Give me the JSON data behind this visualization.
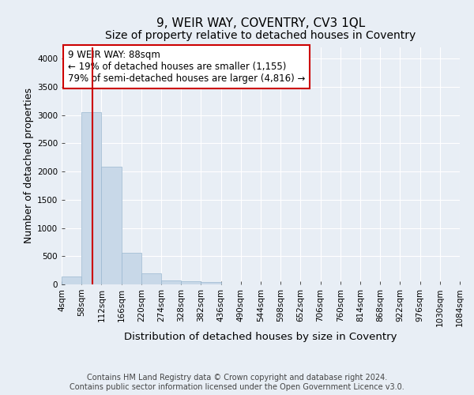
{
  "title": "9, WEIR WAY, COVENTRY, CV3 1QL",
  "subtitle": "Size of property relative to detached houses in Coventry",
  "xlabel": "Distribution of detached houses by size in Coventry",
  "ylabel": "Number of detached properties",
  "bar_color": "#c8d8e8",
  "bar_edge_color": "#9ab8d0",
  "bar_values": [
    140,
    3050,
    2080,
    560,
    200,
    75,
    50,
    40,
    0,
    0,
    0,
    0,
    0,
    0,
    0,
    0,
    0,
    0,
    0,
    0
  ],
  "bin_edges": [
    4,
    58,
    112,
    166,
    220,
    274,
    328,
    382,
    436,
    490,
    544,
    598,
    652,
    706,
    760,
    814,
    868,
    922,
    976,
    1030,
    1084
  ],
  "tick_labels": [
    "4sqm",
    "58sqm",
    "112sqm",
    "166sqm",
    "220sqm",
    "274sqm",
    "328sqm",
    "382sqm",
    "436sqm",
    "490sqm",
    "544sqm",
    "598sqm",
    "652sqm",
    "706sqm",
    "760sqm",
    "814sqm",
    "868sqm",
    "922sqm",
    "976sqm",
    "1030sqm",
    "1084sqm"
  ],
  "ylim": [
    0,
    4200
  ],
  "yticks": [
    0,
    500,
    1000,
    1500,
    2000,
    2500,
    3000,
    3500,
    4000
  ],
  "red_line_x": 88,
  "annotation_text": "9 WEIR WAY: 88sqm\n← 19% of detached houses are smaller (1,155)\n79% of semi-detached houses are larger (4,816) →",
  "annotation_box_color": "#ffffff",
  "annotation_box_edge": "#cc0000",
  "footer_line1": "Contains HM Land Registry data © Crown copyright and database right 2024.",
  "footer_line2": "Contains public sector information licensed under the Open Government Licence v3.0.",
  "background_color": "#e8eef5",
  "grid_color": "#ffffff",
  "title_fontsize": 11,
  "subtitle_fontsize": 10,
  "axis_label_fontsize": 9,
  "tick_fontsize": 7.5,
  "annotation_fontsize": 8.5,
  "footer_fontsize": 7
}
